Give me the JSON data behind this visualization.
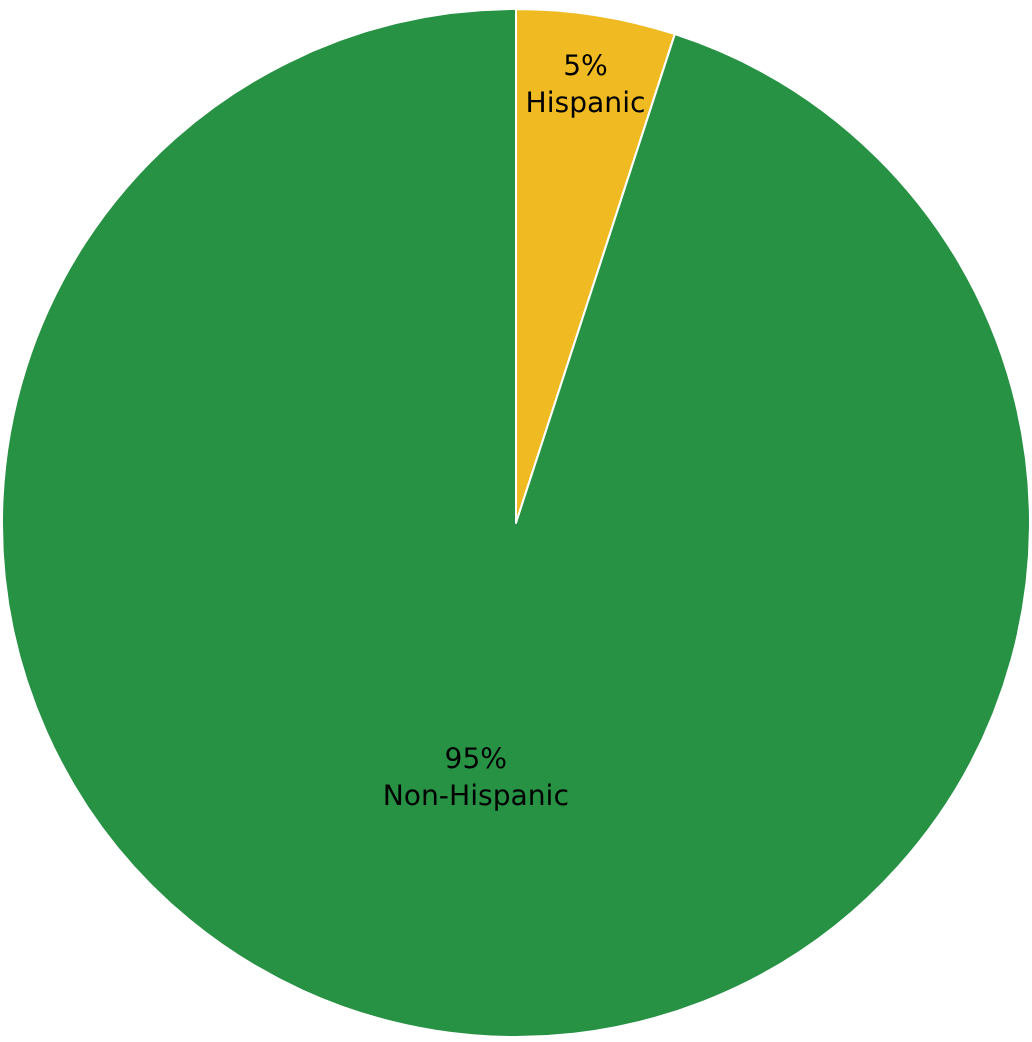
{
  "chart_data": {
    "type": "pie",
    "categories": [
      "Hispanic",
      "Non-Hispanic"
    ],
    "values": [
      5,
      95
    ],
    "value_labels": [
      "5%",
      "95%"
    ],
    "colors": [
      "#f0bb22",
      "#279244"
    ],
    "legend": false
  }
}
